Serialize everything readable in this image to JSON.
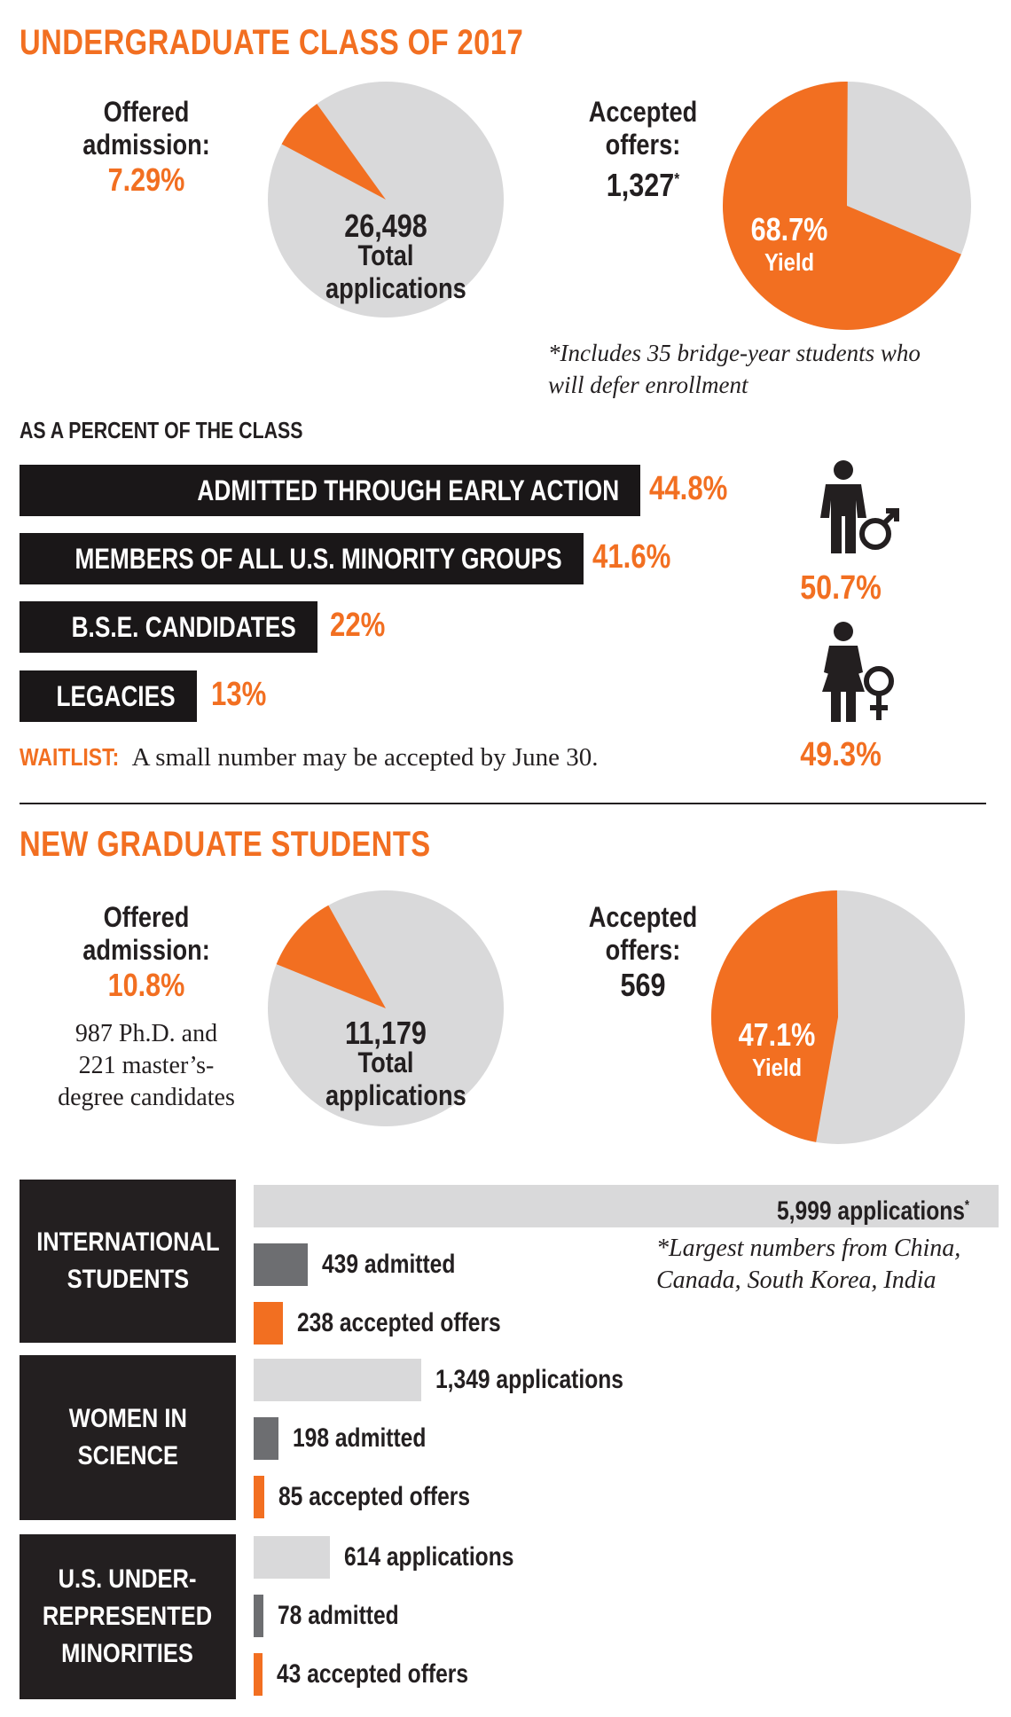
{
  "undergrad": {
    "title": "UNDERGRADUATE CLASS OF 2017",
    "offered": {
      "label1": "Offered",
      "label2": "admission:",
      "value": "7.29%"
    },
    "applications": {
      "value": "26,498",
      "label1": "Total",
      "label2": "applications"
    },
    "accepted": {
      "label1": "Accepted",
      "label2": "offers:",
      "value": "1,327",
      "mark": "*"
    },
    "yield": {
      "value": "68.7%",
      "label": "Yield"
    },
    "footnote": "*Includes 35 bridge-year students who will defer enrollment",
    "percent_title": "AS A PERCENT OF THE CLASS",
    "bars": [
      {
        "label": "ADMITTED THROUGH EARLY ACTION",
        "value": "44.8%"
      },
      {
        "label": "MEMBERS OF ALL U.S. MINORITY GROUPS",
        "value": "41.6%"
      },
      {
        "label": "B.S.E. CANDIDATES",
        "value": "22%"
      },
      {
        "label": "LEGACIES",
        "value": "13%"
      }
    ],
    "male_pct": "50.7%",
    "female_pct": "49.3%",
    "waitlist_label": "WAITLIST:",
    "waitlist_text": "A small number may be accepted by June 30."
  },
  "grad": {
    "title": "NEW GRADUATE STUDENTS",
    "offered": {
      "label1": "Offered",
      "label2": "admission:",
      "value": "10.8%"
    },
    "candidates": {
      "line1": "987 Ph.D. and",
      "line2": "221 master’s-",
      "line3": "degree candidates"
    },
    "applications": {
      "value": "11,179",
      "label1": "Total",
      "label2": "applications"
    },
    "accepted": {
      "label1": "Accepted",
      "label2": "offers:",
      "value": "569"
    },
    "yield": {
      "value": "47.1%",
      "label": "Yield"
    },
    "groups": [
      {
        "name": "INTERNATIONAL\nSTUDENTS",
        "applications_label": "5,999 applications",
        "applications_mark": "*",
        "admitted_label": "439 admitted",
        "accepted_label": "238 accepted offers"
      },
      {
        "name": "WOMEN IN\nSCIENCE",
        "applications_label": "1,349 applications",
        "admitted_label": "198 admitted",
        "accepted_label": "85 accepted offers"
      },
      {
        "name": "U.S. UNDER-\nREPRESENTED\nMINORITIES",
        "applications_label": "614 applications",
        "admitted_label": "78 admitted",
        "accepted_label": "43 accepted offers"
      }
    ],
    "intl_note": "*Largest numbers from China, Canada, South Korea, India"
  },
  "colors": {
    "orange": "#f26f21",
    "grey_light": "#d9d9da",
    "grey_dark": "#6d6e71",
    "black": "#231f20"
  },
  "chart_data": [
    {
      "type": "pie",
      "labels": [
        "Offered admission",
        "Other applications"
      ],
      "values": [
        7.29,
        92.71
      ],
      "total": 26498
    },
    {
      "type": "pie",
      "labels": [
        "Yield",
        "Other"
      ],
      "values": [
        68.7,
        31.3
      ]
    },
    {
      "type": "bar",
      "categories": [
        "ADMITTED THROUGH EARLY ACTION",
        "MEMBERS OF ALL U.S. MINORITY GROUPS",
        "B.S.E. CANDIDATES",
        "LEGACIES"
      ],
      "values": [
        44.8,
        41.6,
        22,
        13
      ]
    },
    {
      "type": "pie",
      "labels": [
        "Offered admission",
        "Other applications"
      ],
      "values": [
        10.8,
        89.2
      ],
      "total": 11179
    },
    {
      "type": "pie",
      "labels": [
        "Yield",
        "Other"
      ],
      "values": [
        47.1,
        52.9
      ]
    },
    {
      "type": "bar",
      "categories": [
        "INTERNATIONAL STUDENTS",
        "WOMEN IN SCIENCE",
        "U.S. UNDER-REPRESENTED MINORITIES"
      ],
      "series": [
        {
          "name": "applications",
          "values": [
            5999,
            1349,
            614
          ]
        },
        {
          "name": "admitted",
          "values": [
            439,
            198,
            78
          ]
        },
        {
          "name": "accepted offers",
          "values": [
            238,
            85,
            43
          ]
        }
      ]
    }
  ]
}
